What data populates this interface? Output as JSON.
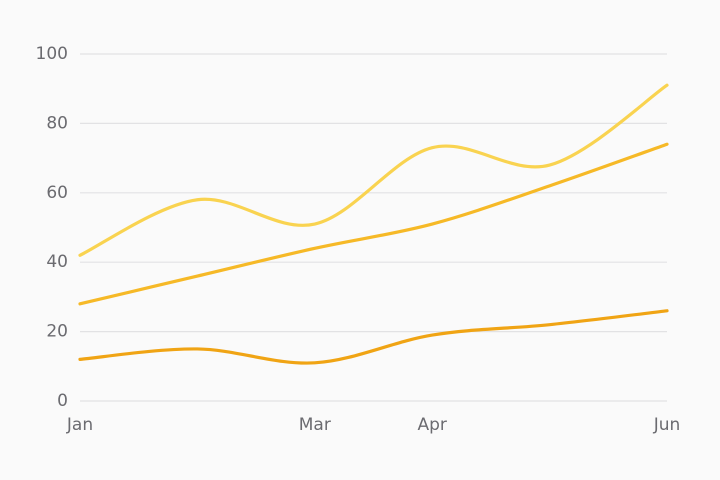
{
  "chart_data": {
    "type": "line",
    "categories": [
      "Jan",
      null,
      "Mar",
      "Apr",
      null,
      "Jun"
    ],
    "series": [
      {
        "color": "#f9d350",
        "values": [
          42,
          58,
          51,
          73,
          68,
          91
        ]
      },
      {
        "color": "#f6b927",
        "values": [
          28,
          36,
          44,
          51,
          62,
          74
        ]
      },
      {
        "color": "#f0a414",
        "values": [
          12,
          15,
          11,
          19,
          22,
          26
        ]
      }
    ],
    "ylim": [
      0,
      100
    ],
    "yticks": [
      0,
      20,
      40,
      60,
      80,
      100
    ],
    "grid": true,
    "smooth": true
  }
}
